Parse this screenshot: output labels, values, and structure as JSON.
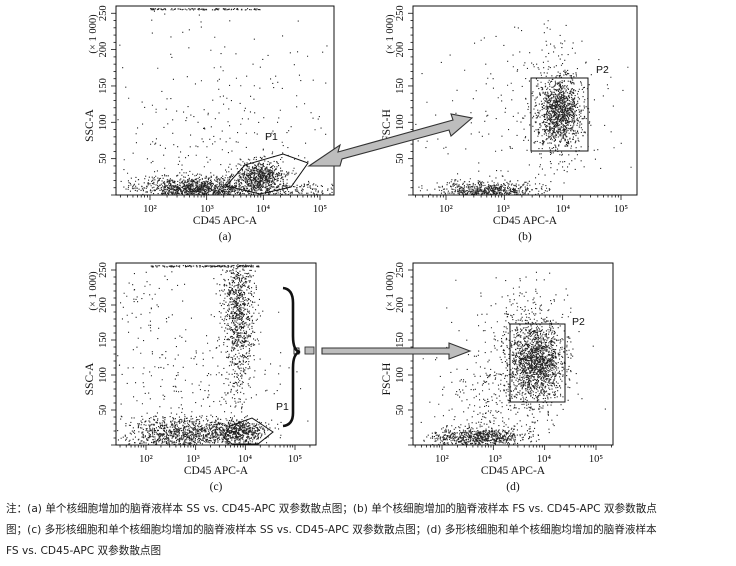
{
  "panels": [
    {
      "id": "a",
      "panel_label": "(a)",
      "y_label": "SSC-A",
      "y_multiplier": "(× 1 000)",
      "x_label": "CD45 APC-A",
      "y_ticks": [
        "50",
        "100",
        "150",
        "200",
        "250"
      ],
      "x_ticks": [
        "10²",
        "10³",
        "10⁴",
        "10⁵"
      ],
      "gates": [
        {
          "label": "P1"
        }
      ]
    },
    {
      "id": "b",
      "panel_label": "(b)",
      "y_label": "FSC-H",
      "y_multiplier": "(× 1 000)",
      "x_label": "CD45 APC-A",
      "y_ticks": [
        "50",
        "100",
        "150",
        "200",
        "250"
      ],
      "x_ticks": [
        "10²",
        "10³",
        "10⁴",
        "10⁵"
      ],
      "gates": [
        {
          "label": "P2"
        }
      ]
    },
    {
      "id": "c",
      "panel_label": "(c)",
      "y_label": "SSC-A",
      "y_multiplier": "(× 1 000)",
      "x_label": "CD45 APC-A",
      "y_ticks": [
        "50",
        "100",
        "150",
        "200",
        "250"
      ],
      "x_ticks": [
        "10²",
        "10³",
        "10⁴",
        "10⁵"
      ],
      "gates": [
        {
          "label": "P1"
        }
      ]
    },
    {
      "id": "d",
      "panel_label": "(d)",
      "y_label": "FSC-H",
      "y_multiplier": "(× 1 000)",
      "x_label": "CD45 APC-A",
      "y_ticks": [
        "50",
        "100",
        "150",
        "200",
        "250"
      ],
      "x_ticks": [
        "10²",
        "10³",
        "10⁴",
        "10⁵"
      ],
      "gates": [
        {
          "label": "P2"
        }
      ]
    }
  ],
  "caption": {
    "lines": [
      "注：(a) 单个核细胞增加的脑脊液样本 SS vs. CD45-APC 双参数散点图；(b) 单个核细胞增加的脑脊液样本 FS vs. CD45-APC 双参数散点",
      "图；(c) 多形核细胞和单个核细胞均增加的脑脊液样本 SS vs. CD45-APC 双参数散点图；(d) 多形核细胞和单个核细胞均增加的脑脊液样本",
      "FS vs. CD45-APC 双参数散点图"
    ]
  },
  "colors": {
    "ink": "#111111",
    "dots": "#222222",
    "arrow_fill": "#bdbdbd",
    "arrow_stroke": "#333333"
  }
}
